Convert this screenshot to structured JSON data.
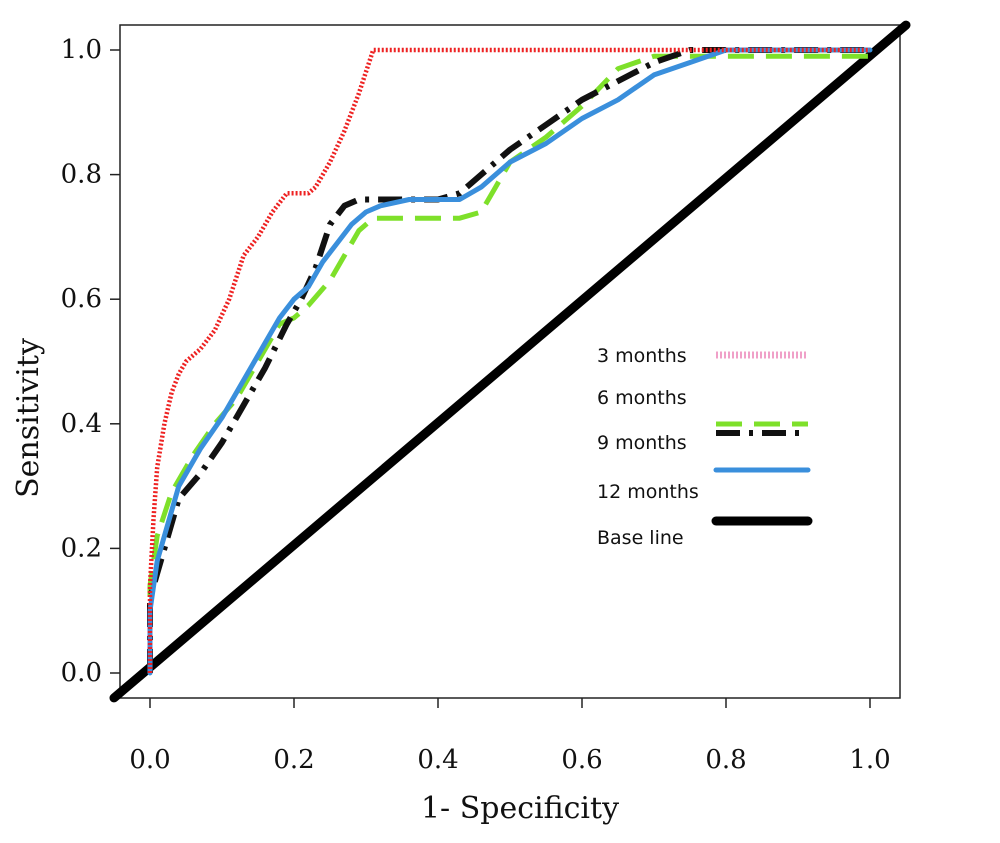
{
  "chart_data": {
    "type": "line",
    "xlabel": "1- Specificity",
    "ylabel": "Sensitivity",
    "xlim": [
      -0.05,
      1.05
    ],
    "ylim": [
      -0.04,
      1.04
    ],
    "x_ticks": [
      "0.0",
      "0.2",
      "0.4",
      "0.6",
      "0.8",
      "1.0"
    ],
    "y_ticks": [
      "0.0",
      "0.2",
      "0.4",
      "0.6",
      "0.8",
      "1.0"
    ],
    "legend_position": "right-center",
    "grid": false,
    "series": [
      {
        "name": "3 months",
        "color": "#ee2222",
        "legend_color": "#f0a0c8",
        "style": "dotted",
        "x": [
          0.0,
          0.0,
          0.005,
          0.01,
          0.02,
          0.03,
          0.04,
          0.05,
          0.07,
          0.09,
          0.11,
          0.13,
          0.15,
          0.17,
          0.19,
          0.2,
          0.22,
          0.23,
          0.25,
          0.27,
          0.29,
          0.31,
          0.33,
          1.0
        ],
        "y": [
          0.0,
          0.14,
          0.25,
          0.33,
          0.4,
          0.45,
          0.48,
          0.5,
          0.52,
          0.55,
          0.6,
          0.67,
          0.7,
          0.74,
          0.77,
          0.77,
          0.77,
          0.78,
          0.82,
          0.87,
          0.93,
          1.0,
          1.0,
          1.0
        ]
      },
      {
        "name": "6 months",
        "color": "#7ee02a",
        "style": "dashed",
        "x": [
          0.0,
          0.0,
          0.01,
          0.03,
          0.06,
          0.09,
          0.12,
          0.15,
          0.18,
          0.2,
          0.22,
          0.25,
          0.27,
          0.29,
          0.31,
          0.33,
          0.36,
          0.4,
          0.43,
          0.46,
          0.48,
          0.5,
          0.55,
          0.6,
          0.65,
          0.7,
          0.75,
          0.8,
          0.9,
          1.0
        ],
        "y": [
          0.0,
          0.14,
          0.22,
          0.29,
          0.35,
          0.4,
          0.44,
          0.5,
          0.56,
          0.57,
          0.59,
          0.63,
          0.67,
          0.71,
          0.73,
          0.73,
          0.73,
          0.73,
          0.73,
          0.74,
          0.78,
          0.82,
          0.86,
          0.91,
          0.97,
          0.99,
          0.99,
          0.99,
          0.99,
          0.99
        ]
      },
      {
        "name": "9 months",
        "color": "#111111",
        "style": "dash-dot",
        "x": [
          0.0,
          0.0,
          0.01,
          0.02,
          0.04,
          0.07,
          0.1,
          0.13,
          0.16,
          0.19,
          0.21,
          0.23,
          0.25,
          0.27,
          0.29,
          0.32,
          0.36,
          0.4,
          0.43,
          0.46,
          0.5,
          0.55,
          0.6,
          0.65,
          0.7,
          0.75,
          0.8,
          0.85,
          1.0
        ],
        "y": [
          0.0,
          0.12,
          0.16,
          0.2,
          0.28,
          0.32,
          0.37,
          0.43,
          0.49,
          0.56,
          0.6,
          0.65,
          0.72,
          0.75,
          0.76,
          0.76,
          0.76,
          0.76,
          0.77,
          0.8,
          0.84,
          0.88,
          0.92,
          0.95,
          0.98,
          1.0,
          1.0,
          1.0,
          1.0
        ]
      },
      {
        "name": "12 months",
        "color": "#3a8fdc",
        "style": "solid",
        "x": [
          0.0,
          0.0,
          0.01,
          0.02,
          0.04,
          0.07,
          0.1,
          0.13,
          0.16,
          0.18,
          0.2,
          0.22,
          0.24,
          0.26,
          0.28,
          0.3,
          0.32,
          0.36,
          0.4,
          0.43,
          0.46,
          0.5,
          0.55,
          0.6,
          0.65,
          0.7,
          0.75,
          0.8,
          0.9,
          1.0
        ],
        "y": [
          0.0,
          0.1,
          0.18,
          0.22,
          0.3,
          0.36,
          0.41,
          0.47,
          0.53,
          0.57,
          0.6,
          0.62,
          0.66,
          0.69,
          0.72,
          0.74,
          0.75,
          0.76,
          0.76,
          0.76,
          0.78,
          0.82,
          0.85,
          0.89,
          0.92,
          0.96,
          0.98,
          1.0,
          1.0,
          1.0
        ]
      },
      {
        "name": "Base line",
        "color": "#000000",
        "style": "solid-thick",
        "x": [
          -0.05,
          1.05
        ],
        "y": [
          -0.04,
          1.04
        ]
      }
    ]
  }
}
